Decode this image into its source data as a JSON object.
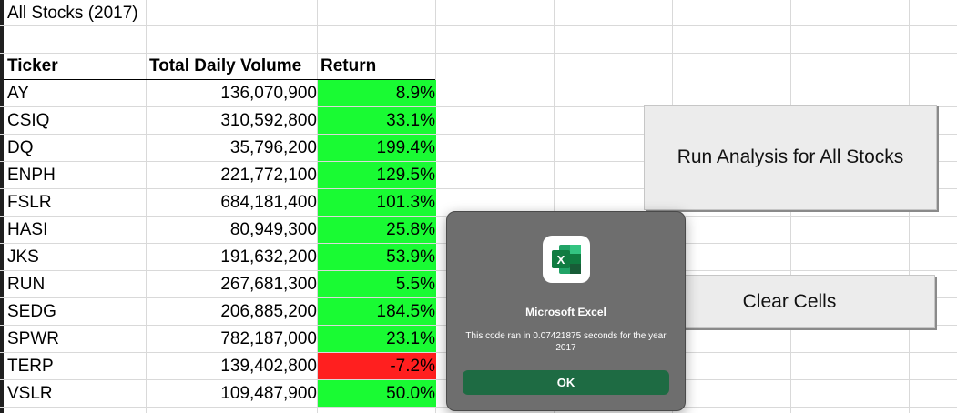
{
  "sheet": {
    "title": "All Stocks (2017)",
    "headers": {
      "ticker": "Ticker",
      "volume": "Total Daily Volume",
      "return": "Return"
    },
    "rows": [
      {
        "ticker": "AY",
        "volume": "136,070,900",
        "return": "8.9%",
        "status": "positive"
      },
      {
        "ticker": "CSIQ",
        "volume": "310,592,800",
        "return": "33.1%",
        "status": "positive"
      },
      {
        "ticker": "DQ",
        "volume": "35,796,200",
        "return": "199.4%",
        "status": "positive"
      },
      {
        "ticker": "ENPH",
        "volume": "221,772,100",
        "return": "129.5%",
        "status": "positive"
      },
      {
        "ticker": "FSLR",
        "volume": "684,181,400",
        "return": "101.3%",
        "status": "positive"
      },
      {
        "ticker": "HASI",
        "volume": "80,949,300",
        "return": "25.8%",
        "status": "positive"
      },
      {
        "ticker": "JKS",
        "volume": "191,632,200",
        "return": "53.9%",
        "status": "positive"
      },
      {
        "ticker": "RUN",
        "volume": "267,681,300",
        "return": "5.5%",
        "status": "positive"
      },
      {
        "ticker": "SEDG",
        "volume": "206,885,200",
        "return": "184.5%",
        "status": "positive"
      },
      {
        "ticker": "SPWR",
        "volume": "782,187,000",
        "return": "23.1%",
        "status": "positive"
      },
      {
        "ticker": "TERP",
        "volume": "139,402,800",
        "return": "-7.2%",
        "status": "negative"
      },
      {
        "ticker": "VSLR",
        "volume": "109,487,900",
        "return": "50.0%",
        "status": "positive"
      }
    ]
  },
  "buttons": {
    "run_label": "Run Analysis for All Stocks",
    "clear_label": "Clear Cells"
  },
  "dialog": {
    "app_name": "Microsoft Excel",
    "message": "This code ran in 0.07421875 seconds for the year 2017",
    "ok_label": "OK",
    "icon": "excel-icon"
  },
  "colors": {
    "positive": "#19fb33",
    "negative": "#ff1f1f",
    "dialog_bg": "#6e6e6e",
    "ok_bg": "#1e6b43"
  }
}
